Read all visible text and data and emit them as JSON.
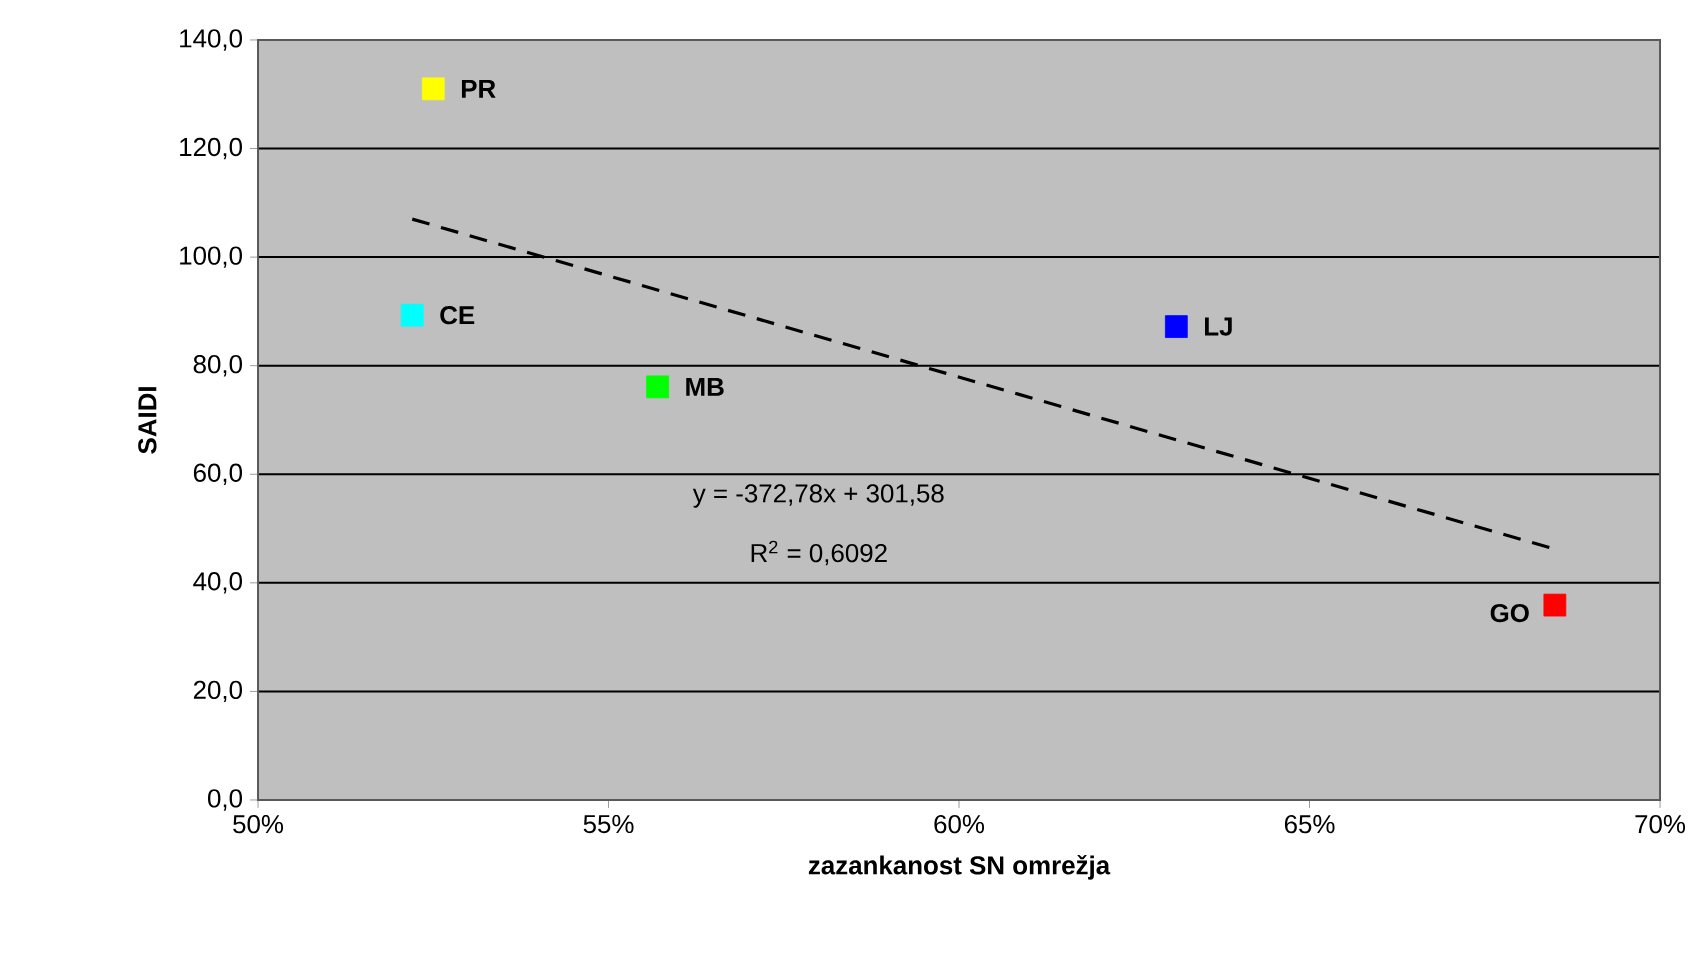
{
  "chart_data": {
    "type": "scatter",
    "xlabel": "zazankanost SN omrežja",
    "ylabel": "SAIDI",
    "series": [
      {
        "x": [
          0.525,
          0.522,
          0.557,
          0.631,
          0.685
        ],
        "values": [
          131.0,
          89.3,
          76.1,
          87.2,
          35.9
        ],
        "colors": [
          "#ffff00",
          "#00ffff",
          "#00ff00",
          "#0000ff",
          "#ff0000"
        ],
        "marker": "square"
      },
      {
        "type": "line",
        "x": [
          0.522,
          0.685
        ],
        "values": [
          107.0,
          46.2
        ],
        "color": "#000000",
        "line_style": "dashed",
        "marker": "none"
      }
    ],
    "annotations": [
      {
        "text": "PR",
        "x": 0.525,
        "y": 131.0
      },
      {
        "text": "CE",
        "x": 0.522,
        "y": 89.3
      },
      {
        "text": "MB",
        "x": 0.557,
        "y": 76.1
      },
      {
        "text": "LJ",
        "x": 0.631,
        "y": 87.2
      },
      {
        "text": "GO",
        "x": 0.685,
        "y": 35.9
      },
      "y = -372,78x + 301,58",
      "R$^{2}$ = 0,6092"
    ],
    "xlim": [
      0.5,
      0.7
    ],
    "xticks": [
      {
        "value": 0.5,
        "label": "50%"
      },
      {
        "value": 0.55,
        "label": "55%"
      },
      {
        "value": 0.6,
        "label": "60%"
      },
      {
        "value": 0.65,
        "label": "65%"
      },
      {
        "value": 0.7,
        "label": "70%"
      }
    ],
    "ylim": [
      0,
      140
    ],
    "yticks": [
      {
        "value": 0,
        "label": "0,0"
      },
      {
        "value": 20,
        "label": "20,0"
      },
      {
        "value": 40,
        "label": "40,0"
      },
      {
        "value": 60,
        "label": "60,0"
      },
      {
        "value": 80,
        "label": "80,0"
      },
      {
        "value": 100,
        "label": "100,0"
      },
      {
        "value": 120,
        "label": "120,0"
      },
      {
        "value": 140,
        "label": "140,0"
      }
    ],
    "grid": "y"
  }
}
